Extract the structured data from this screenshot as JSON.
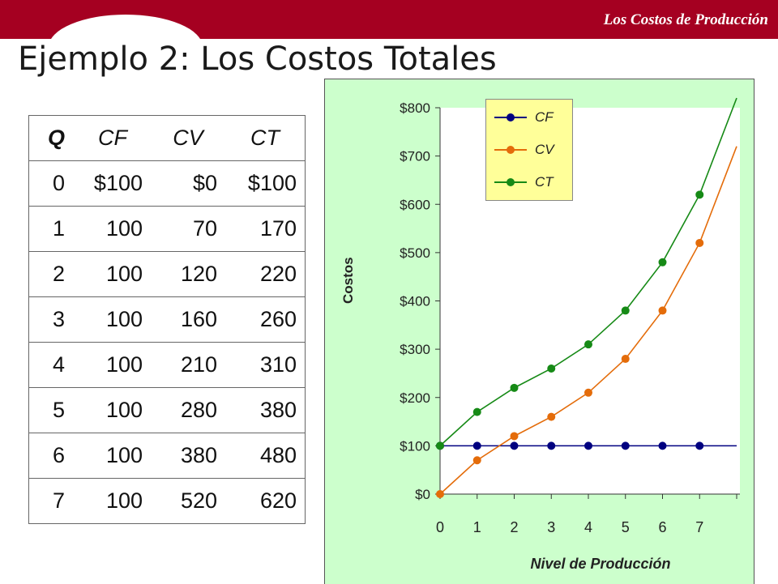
{
  "header": {
    "section": "Los Costos de Producción"
  },
  "title": "Ejemplo 2: Los Costos Totales",
  "table": {
    "headers": [
      "Q",
      "CF",
      "CV",
      "CT"
    ],
    "rows": [
      [
        "0",
        "$100",
        "$0",
        "$100"
      ],
      [
        "1",
        "100",
        "70",
        "170"
      ],
      [
        "2",
        "100",
        "120",
        "220"
      ],
      [
        "3",
        "100",
        "160",
        "260"
      ],
      [
        "4",
        "100",
        "210",
        "310"
      ],
      [
        "5",
        "100",
        "280",
        "380"
      ],
      [
        "6",
        "100",
        "380",
        "480"
      ],
      [
        "7",
        "100",
        "520",
        "620"
      ]
    ]
  },
  "chart_data": {
    "type": "line",
    "x": [
      0,
      1,
      2,
      3,
      4,
      5,
      6,
      7
    ],
    "xticks": [
      "0",
      "1",
      "2",
      "3",
      "4",
      "5",
      "6",
      "7"
    ],
    "xlabel": "Nivel de Producción",
    "ylabel": "Costos",
    "ylim": [
      0,
      800
    ],
    "yticks": [
      "$0",
      "$100",
      "$200",
      "$300",
      "$400",
      "$500",
      "$600",
      "$700",
      "$800"
    ],
    "legend_position": "top",
    "series": [
      {
        "name": "CF",
        "color": "#000080",
        "values": [
          100,
          100,
          100,
          100,
          100,
          100,
          100,
          100
        ],
        "line_extends_to": 8,
        "line_end_value": 100
      },
      {
        "name": "CV",
        "color": "#e46c0a",
        "values": [
          0,
          70,
          120,
          160,
          210,
          280,
          380,
          520
        ],
        "line_extends_to": 8,
        "line_end_value": 720
      },
      {
        "name": "CT",
        "color": "#168a16",
        "values": [
          100,
          170,
          220,
          260,
          310,
          380,
          480,
          620
        ],
        "line_extends_to": 8,
        "line_end_value": 820
      }
    ]
  }
}
